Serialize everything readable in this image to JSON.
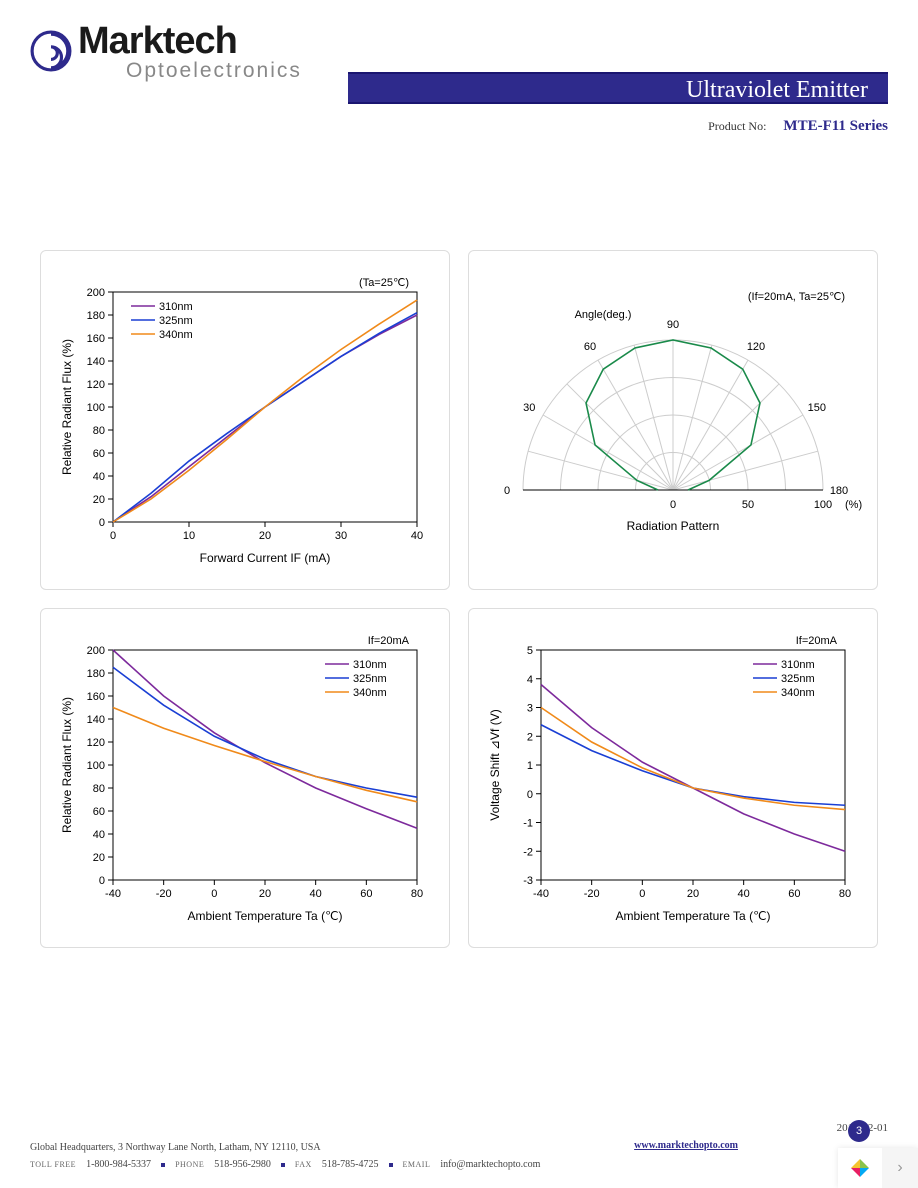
{
  "brand": {
    "main": "Marktech",
    "sub": "Optoelectronics"
  },
  "title_bar": "Ultraviolet Emitter",
  "product": {
    "label": "Product No:",
    "value": "MTE-F11 Series"
  },
  "colors": {
    "primary": "#2e2a8c",
    "series_310": "#7d2a9c",
    "series_325": "#1a3fd4",
    "series_340": "#f08a1a",
    "polar": "#1a8a4a",
    "grid": "#cccccc",
    "axis": "#000000",
    "bg": "#ffffff"
  },
  "chart1": {
    "type": "line",
    "condition": "(Ta=25℃)",
    "xlabel": "Forward Current IF (mA)",
    "ylabel": "Relative Radiant Flux (%)",
    "xlim": [
      0,
      40
    ],
    "xtick_step": 10,
    "ylim": [
      0,
      200
    ],
    "ytick_step": 20,
    "legend": [
      "310nm",
      "325nm",
      "340nm"
    ],
    "label_fontsize": 11,
    "line_width": 1.6,
    "series": {
      "310nm": {
        "color": "#7d2a9c",
        "points": [
          [
            0,
            0
          ],
          [
            5,
            22
          ],
          [
            10,
            48
          ],
          [
            15,
            74
          ],
          [
            20,
            100
          ],
          [
            25,
            122
          ],
          [
            30,
            144
          ],
          [
            35,
            163
          ],
          [
            40,
            180
          ]
        ]
      },
      "325nm": {
        "color": "#1a3fd4",
        "points": [
          [
            0,
            0
          ],
          [
            5,
            25
          ],
          [
            10,
            53
          ],
          [
            15,
            77
          ],
          [
            20,
            100
          ],
          [
            25,
            122
          ],
          [
            30,
            144
          ],
          [
            35,
            164
          ],
          [
            40,
            182
          ]
        ]
      },
      "340nm": {
        "color": "#f08a1a",
        "points": [
          [
            0,
            0
          ],
          [
            5,
            20
          ],
          [
            10,
            45
          ],
          [
            15,
            72
          ],
          [
            20,
            100
          ],
          [
            25,
            126
          ],
          [
            30,
            150
          ],
          [
            35,
            172
          ],
          [
            40,
            193
          ]
        ]
      }
    }
  },
  "chart2": {
    "type": "polar",
    "condition": "(If=20mA, Ta=25℃)",
    "title_top": "Angle(deg.)",
    "xlabel": "Radiation Pattern",
    "angle_ticks": [
      0,
      30,
      60,
      90,
      120,
      150,
      180
    ],
    "radial_ticks": [
      0,
      50,
      100
    ],
    "radial_unit": "(%)",
    "line_color": "#1a8a4a",
    "line_width": 1.6,
    "label_fontsize": 11,
    "grid_color": "#cccccc",
    "points_deg_pct": [
      [
        0,
        10
      ],
      [
        15,
        25
      ],
      [
        30,
        60
      ],
      [
        45,
        82
      ],
      [
        60,
        93
      ],
      [
        75,
        98
      ],
      [
        90,
        100
      ],
      [
        105,
        98
      ],
      [
        120,
        93
      ],
      [
        135,
        82
      ],
      [
        150,
        60
      ],
      [
        165,
        25
      ],
      [
        180,
        10
      ]
    ]
  },
  "chart3": {
    "type": "line",
    "condition": "If=20mA",
    "xlabel": "Ambient Temperature Ta (℃)",
    "ylabel": "Relative Radiant Flux (%)",
    "xlim": [
      -40,
      80
    ],
    "xtick_step": 20,
    "ylim": [
      0,
      200
    ],
    "ytick_step": 20,
    "legend": [
      "310nm",
      "325nm",
      "340nm"
    ],
    "label_fontsize": 11,
    "line_width": 1.6,
    "series": {
      "310nm": {
        "color": "#7d2a9c",
        "points": [
          [
            -40,
            200
          ],
          [
            -20,
            160
          ],
          [
            0,
            128
          ],
          [
            20,
            102
          ],
          [
            40,
            80
          ],
          [
            60,
            62
          ],
          [
            80,
            45
          ]
        ]
      },
      "325nm": {
        "color": "#1a3fd4",
        "points": [
          [
            -40,
            185
          ],
          [
            -20,
            152
          ],
          [
            0,
            125
          ],
          [
            20,
            105
          ],
          [
            40,
            90
          ],
          [
            60,
            80
          ],
          [
            80,
            72
          ]
        ]
      },
      "340nm": {
        "color": "#f08a1a",
        "points": [
          [
            -40,
            150
          ],
          [
            -20,
            132
          ],
          [
            0,
            117
          ],
          [
            20,
            103
          ],
          [
            40,
            90
          ],
          [
            60,
            78
          ],
          [
            80,
            68
          ]
        ]
      }
    }
  },
  "chart4": {
    "type": "line",
    "condition": "If=20mA",
    "xlabel": "Ambient Temperature Ta (℃)",
    "ylabel": "Voltage Shift ⊿Vf (V)",
    "xlim": [
      -40,
      80
    ],
    "xtick_step": 20,
    "ylim": [
      -3,
      5
    ],
    "ytick_step": 1,
    "legend": [
      "310nm",
      "325nm",
      "340nm"
    ],
    "label_fontsize": 11,
    "line_width": 1.6,
    "series": {
      "310nm": {
        "color": "#7d2a9c",
        "points": [
          [
            -40,
            3.8
          ],
          [
            -20,
            2.3
          ],
          [
            0,
            1.1
          ],
          [
            20,
            0.2
          ],
          [
            40,
            -0.7
          ],
          [
            60,
            -1.4
          ],
          [
            80,
            -2.0
          ]
        ]
      },
      "325nm": {
        "color": "#1a3fd4",
        "points": [
          [
            -40,
            2.4
          ],
          [
            -20,
            1.5
          ],
          [
            0,
            0.8
          ],
          [
            20,
            0.2
          ],
          [
            40,
            -0.1
          ],
          [
            60,
            -0.3
          ],
          [
            80,
            -0.4
          ]
        ]
      },
      "340nm": {
        "color": "#f08a1a",
        "points": [
          [
            -40,
            3.0
          ],
          [
            -20,
            1.8
          ],
          [
            0,
            0.9
          ],
          [
            20,
            0.2
          ],
          [
            40,
            -0.15
          ],
          [
            60,
            -0.4
          ],
          [
            80,
            -0.55
          ]
        ]
      }
    }
  },
  "footer": {
    "date": "2014-02-01",
    "address": "Global Headquarters, 3 Northway Lane North, Latham, NY 12110, USA",
    "tollfree_label": "TOLL FREE",
    "tollfree": "1-800-984-5337",
    "phone_label": "PHONE",
    "phone": "518-956-2980",
    "fax_label": "FAX",
    "fax": "518-785-4725",
    "email_label": "EMAIL",
    "email": "info@marktechopto.com",
    "website": "www.marktechopto.com",
    "page": "3"
  }
}
